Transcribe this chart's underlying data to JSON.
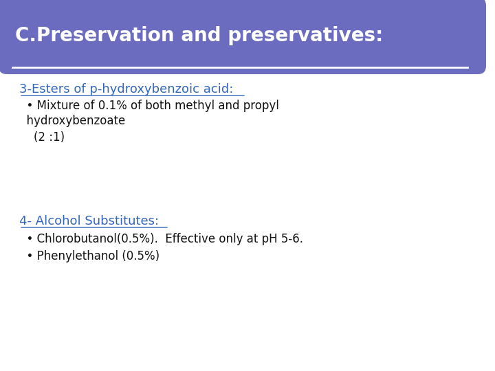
{
  "title": "C.Preservation and preservatives:",
  "title_bg_color": "#6B6BBF",
  "title_text_color": "#FFFFFF",
  "title_fontsize": 20,
  "slide_bg_color": "#FFFFFF",
  "border_color": "#7799AA",
  "section1_heading": "3-Esters of p-hydroxybenzoic acid:",
  "section1_heading_color": "#3366BB",
  "section1_heading_fontsize": 13,
  "section1_line1": "  • Mixture of 0.1% of both methyl and propyl",
  "section1_line2": "  hydroxybenzoate",
  "section1_line3": "    (2 :1)",
  "section2_heading": "4- Alcohol Substitutes:",
  "section2_heading_color": "#3366BB",
  "section2_heading_fontsize": 13,
  "section2_bullet1": "  • Chlorobutanol(0.5%).  Effective only at pH 5-6.",
  "section2_bullet2": "  • Phenylethanol (0.5%)",
  "bullet_text_color": "#111111",
  "bullet_fontsize": 12,
  "figsize": [
    7.2,
    5.4
  ],
  "dpi": 100
}
